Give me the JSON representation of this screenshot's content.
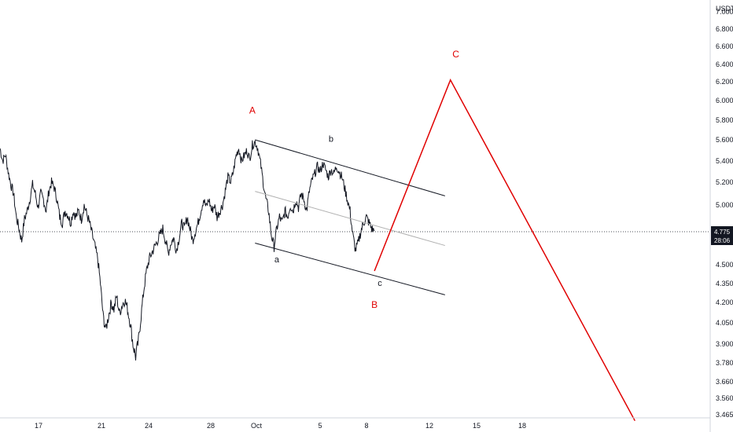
{
  "chart_data": {
    "type": "candlestick",
    "currency": "USDT",
    "y_ticks": [
      "7.000",
      "6.800",
      "6.600",
      "6.400",
      "6.200",
      "6.000",
      "5.800",
      "5.600",
      "5.400",
      "5.200",
      "5.000",
      "4.775",
      "4.500",
      "4.350",
      "4.200",
      "4.050",
      "3.900",
      "3.780",
      "3.660",
      "3.560",
      "3.465"
    ],
    "x_ticks": [
      "17",
      "21",
      "24",
      "28",
      "Oct",
      "5",
      "8",
      "12",
      "15",
      "18"
    ],
    "price_badge": {
      "value": "4.775",
      "countdown": "28:06",
      "color": "#131722"
    },
    "ohlc_path": [
      [
        0,
        5.52
      ],
      [
        0.5,
        5.4
      ],
      [
        1,
        5.46
      ],
      [
        1.5,
        5.3
      ],
      [
        2,
        5.18
      ],
      [
        2.5,
        5.1
      ],
      [
        3,
        4.9
      ],
      [
        3.5,
        4.8
      ],
      [
        4,
        4.7
      ],
      [
        4.5,
        4.88
      ],
      [
        5,
        4.95
      ],
      [
        5.5,
        5.05
      ],
      [
        6,
        5.18
      ],
      [
        6.5,
        5.1
      ],
      [
        7,
        4.98
      ],
      [
        7.5,
        5.1
      ],
      [
        8,
        5.05
      ],
      [
        8.5,
        4.95
      ],
      [
        9,
        5.12
      ],
      [
        9.5,
        5.2
      ],
      [
        10,
        5.15
      ],
      [
        10.5,
        5.05
      ],
      [
        11,
        4.9
      ],
      [
        11.5,
        4.85
      ],
      [
        12,
        4.95
      ],
      [
        12.5,
        4.92
      ],
      [
        13,
        4.85
      ],
      [
        13.5,
        4.95
      ],
      [
        14,
        4.9
      ],
      [
        14.5,
        4.95
      ],
      [
        15,
        4.88
      ],
      [
        15.5,
        5.0
      ],
      [
        16,
        4.92
      ],
      [
        16.5,
        4.85
      ],
      [
        17,
        4.75
      ],
      [
        17.5,
        4.65
      ],
      [
        18,
        4.55
      ],
      [
        18.5,
        4.35
      ],
      [
        19,
        4.1
      ],
      [
        19.5,
        4.0
      ],
      [
        20,
        4.1
      ],
      [
        20.5,
        4.2
      ],
      [
        21,
        4.15
      ],
      [
        21.5,
        4.25
      ],
      [
        22,
        4.12
      ],
      [
        22.5,
        4.18
      ],
      [
        23,
        4.22
      ],
      [
        23.5,
        4.15
      ],
      [
        24,
        4.05
      ],
      [
        24.5,
        3.9
      ],
      [
        25,
        3.82
      ],
      [
        25.5,
        3.92
      ],
      [
        26,
        4.1
      ],
      [
        26.5,
        4.3
      ],
      [
        27,
        4.45
      ],
      [
        27.5,
        4.55
      ],
      [
        28,
        4.6
      ],
      [
        28.5,
        4.65
      ],
      [
        29,
        4.7
      ],
      [
        29.5,
        4.75
      ],
      [
        30,
        4.8
      ],
      [
        30.5,
        4.7
      ],
      [
        31,
        4.6
      ],
      [
        31.5,
        4.68
      ],
      [
        32,
        4.72
      ],
      [
        32.5,
        4.62
      ],
      [
        33,
        4.72
      ],
      [
        33.5,
        4.85
      ],
      [
        34,
        4.8
      ],
      [
        34.5,
        4.9
      ],
      [
        35,
        4.8
      ],
      [
        35.5,
        4.7
      ],
      [
        36,
        4.78
      ],
      [
        36.5,
        4.85
      ],
      [
        37,
        4.95
      ],
      [
        37.5,
        5.05
      ],
      [
        38,
        4.98
      ],
      [
        38.5,
        5.05
      ],
      [
        39,
        4.95
      ],
      [
        39.5,
        5.0
      ],
      [
        40,
        4.9
      ],
      [
        40.5,
        4.95
      ],
      [
        41,
        5.0
      ],
      [
        41.5,
        5.12
      ],
      [
        42,
        5.25
      ],
      [
        42.5,
        5.2
      ],
      [
        43,
        5.3
      ],
      [
        43.5,
        5.45
      ],
      [
        44,
        5.52
      ],
      [
        44.5,
        5.4
      ],
      [
        45,
        5.45
      ],
      [
        45.5,
        5.5
      ],
      [
        46,
        5.42
      ],
      [
        46.5,
        5.55
      ],
      [
        47,
        5.58
      ],
      [
        47.5,
        5.52
      ],
      [
        48,
        5.38
      ],
      [
        48.5,
        5.2
      ],
      [
        49,
        5.05
      ],
      [
        49.5,
        4.95
      ],
      [
        50,
        4.75
      ],
      [
        50.5,
        4.65
      ],
      [
        51,
        4.8
      ],
      [
        51.5,
        4.9
      ],
      [
        52,
        4.85
      ],
      [
        52.5,
        4.95
      ],
      [
        53,
        4.9
      ],
      [
        53.5,
        5.0
      ],
      [
        54,
        4.95
      ],
      [
        54.5,
        5.05
      ],
      [
        55,
        4.98
      ],
      [
        55.5,
        5.1
      ],
      [
        56,
        5.05
      ],
      [
        56.5,
        4.95
      ],
      [
        57,
        5.12
      ],
      [
        57.5,
        5.22
      ],
      [
        58,
        5.28
      ],
      [
        58.5,
        5.35
      ],
      [
        59,
        5.3
      ],
      [
        59.5,
        5.38
      ],
      [
        60,
        5.32
      ],
      [
        60.5,
        5.25
      ],
      [
        61,
        5.32
      ],
      [
        61.5,
        5.28
      ],
      [
        62,
        5.35
      ],
      [
        62.5,
        5.3
      ],
      [
        63,
        5.25
      ],
      [
        63.5,
        5.15
      ],
      [
        64,
        5.05
      ],
      [
        64.5,
        4.95
      ],
      [
        65,
        4.75
      ],
      [
        65.5,
        4.62
      ],
      [
        66,
        4.68
      ],
      [
        66.5,
        4.78
      ],
      [
        67,
        4.85
      ],
      [
        67.5,
        4.9
      ],
      [
        68,
        4.85
      ],
      [
        68.5,
        4.8
      ],
      [
        69,
        4.78
      ]
    ],
    "channel_lines": [
      {
        "name": "upper-channel-line",
        "color": "#131722",
        "points": [
          [
            47,
            5.6
          ],
          [
            82,
            5.08
          ]
        ]
      },
      {
        "name": "mid-channel-line",
        "color": "#b0b0b0",
        "points": [
          [
            47,
            5.12
          ],
          [
            82,
            4.66
          ]
        ]
      },
      {
        "name": "lower-channel-line",
        "color": "#131722",
        "points": [
          [
            47,
            4.68
          ],
          [
            82,
            4.26
          ]
        ]
      }
    ],
    "projection": {
      "color": "#e00000",
      "points": [
        [
          69,
          4.45
        ],
        [
          83,
          6.22
        ],
        [
          117,
          3.43
        ]
      ]
    },
    "current_price_line": 4.775,
    "wave_labels": [
      {
        "text": "A",
        "color": "#e00000",
        "x": 46.5,
        "y": 5.87
      },
      {
        "text": "C",
        "color": "#e00000",
        "x": 84,
        "y": 6.48
      },
      {
        "text": "B",
        "color": "#e00000",
        "x": 69,
        "y": 4.16
      },
      {
        "text": "b",
        "color": "#131722",
        "x": 61,
        "y": 5.58
      },
      {
        "text": "a",
        "color": "#131722",
        "x": 51,
        "y": 4.52
      },
      {
        "text": "c",
        "color": "#131722",
        "x": 70,
        "y": 4.33
      }
    ]
  }
}
